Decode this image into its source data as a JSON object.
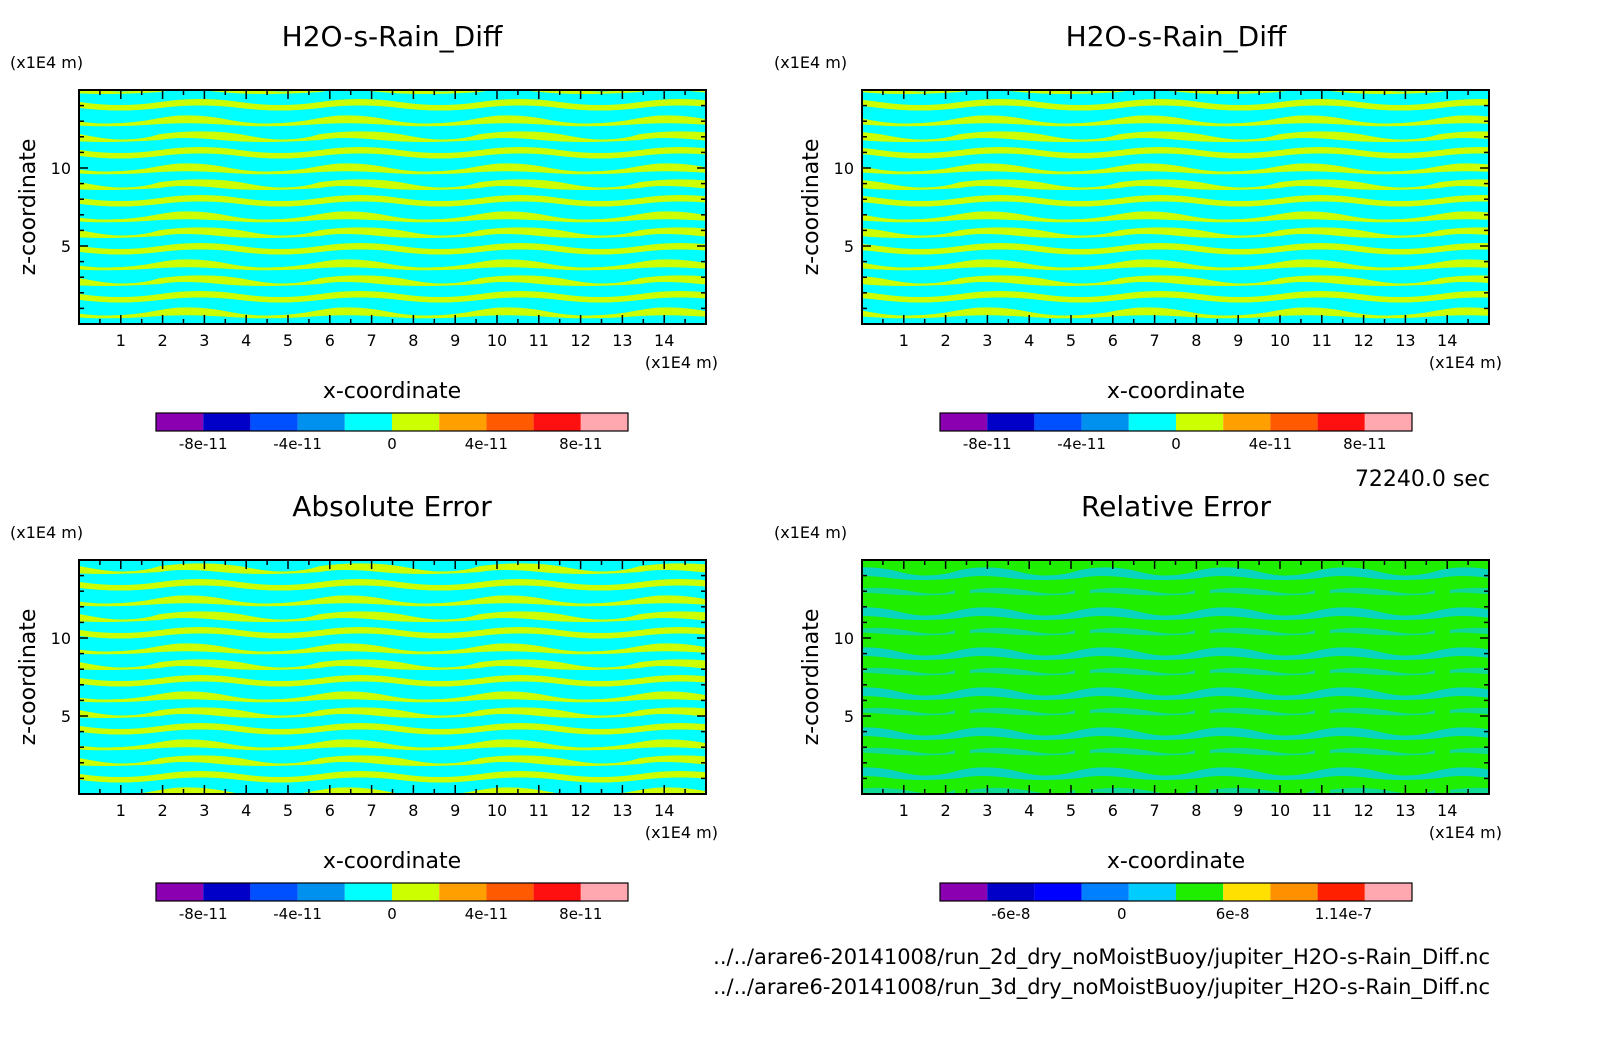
{
  "time_label": "72240.0 sec",
  "file_paths": [
    "../../arare6-20141008/run_2d_dry_noMoistBuoy/jupiter_H2O-s-Rain_Diff.nc",
    "../../arare6-20141008/run_3d_dry_noMoistBuoy/jupiter_H2O-s-Rain_Diff.nc"
  ],
  "colors": {
    "diff_field": [
      "#00ffff",
      "#ccff00"
    ],
    "relative_field": [
      "#20ee00",
      "#00ccff"
    ]
  },
  "chart_data": [
    {
      "type": "heatmap",
      "title": "H2O-s-Rain_Diff",
      "xlabel": "x-coordinate",
      "ylabel": "z-coordinate",
      "x_unit": "(x1E4 m)",
      "y_unit": "(x1E4 m)",
      "xlim": [
        0,
        15
      ],
      "ylim": [
        0,
        15
      ],
      "x_ticks": [
        "1",
        "2",
        "3",
        "4",
        "5",
        "6",
        "7",
        "8",
        "9",
        "10",
        "11",
        "12",
        "13",
        "14"
      ],
      "y_ticks": [
        "5",
        "10"
      ],
      "colorbar": {
        "colors": [
          "#8b00b0",
          "#0000c8",
          "#0050ff",
          "#0090ee",
          "#00ffff",
          "#ccff00",
          "#ffa000",
          "#ff5a00",
          "#ff1010",
          "#ffa8b0"
        ],
        "tick_labels": [
          "-8e-11",
          "-4e-11",
          "0",
          "4e-11",
          "8e-11"
        ]
      }
    },
    {
      "type": "heatmap",
      "title": "H2O-s-Rain_Diff",
      "xlabel": "x-coordinate",
      "ylabel": "z-coordinate",
      "x_unit": "(x1E4 m)",
      "y_unit": "(x1E4 m)",
      "xlim": [
        0,
        15
      ],
      "ylim": [
        0,
        15
      ],
      "x_ticks": [
        "1",
        "2",
        "3",
        "4",
        "5",
        "6",
        "7",
        "8",
        "9",
        "10",
        "11",
        "12",
        "13",
        "14"
      ],
      "y_ticks": [
        "5",
        "10"
      ],
      "colorbar": {
        "colors": [
          "#8b00b0",
          "#0000c8",
          "#0050ff",
          "#0090ee",
          "#00ffff",
          "#ccff00",
          "#ffa000",
          "#ff5a00",
          "#ff1010",
          "#ffa8b0"
        ],
        "tick_labels": [
          "-8e-11",
          "-4e-11",
          "0",
          "4e-11",
          "8e-11"
        ]
      }
    },
    {
      "type": "heatmap",
      "title": "Absolute Error",
      "xlabel": "x-coordinate",
      "ylabel": "z-coordinate",
      "x_unit": "(x1E4 m)",
      "y_unit": "(x1E4 m)",
      "xlim": [
        0,
        15
      ],
      "ylim": [
        0,
        15
      ],
      "x_ticks": [
        "1",
        "2",
        "3",
        "4",
        "5",
        "6",
        "7",
        "8",
        "9",
        "10",
        "11",
        "12",
        "13",
        "14"
      ],
      "y_ticks": [
        "5",
        "10"
      ],
      "colorbar": {
        "colors": [
          "#8b00b0",
          "#0000c8",
          "#0050ff",
          "#0090ee",
          "#00ffff",
          "#ccff00",
          "#ffa000",
          "#ff5a00",
          "#ff1010",
          "#ffa8b0"
        ],
        "tick_labels": [
          "-8e-11",
          "-4e-11",
          "0",
          "4e-11",
          "8e-11"
        ]
      }
    },
    {
      "type": "heatmap",
      "title": "Relative Error",
      "xlabel": "x-coordinate",
      "ylabel": "z-coordinate",
      "x_unit": "(x1E4 m)",
      "y_unit": "(x1E4 m)",
      "xlim": [
        0,
        15
      ],
      "ylim": [
        0,
        15
      ],
      "x_ticks": [
        "1",
        "2",
        "3",
        "4",
        "5",
        "6",
        "7",
        "8",
        "9",
        "10",
        "11",
        "12",
        "13",
        "14"
      ],
      "y_ticks": [
        "5",
        "10"
      ],
      "colorbar": {
        "colors": [
          "#8b00b0",
          "#0000c8",
          "#0000ff",
          "#0080ff",
          "#00ccff",
          "#20ee00",
          "#ffe000",
          "#ff9000",
          "#ff2000",
          "#ffa8b0"
        ],
        "tick_labels": [
          "-6e-8",
          "0",
          "6e-8",
          "1.14e-7"
        ]
      }
    }
  ]
}
